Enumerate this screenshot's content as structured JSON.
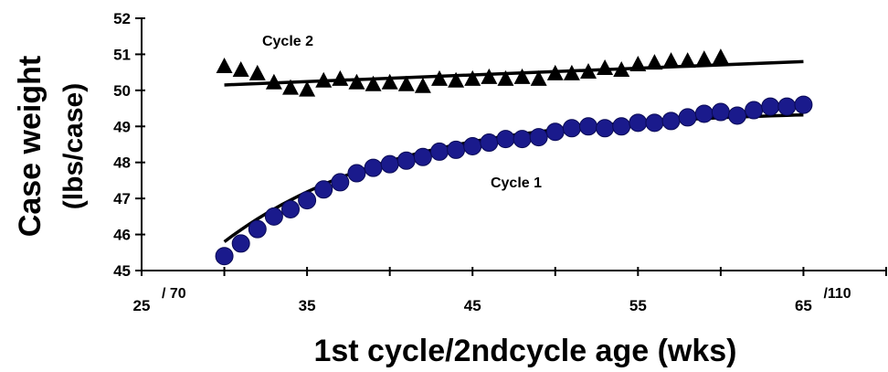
{
  "chart_data": {
    "type": "scatter",
    "xlabel": "1st cycle/2ndcycle age (wks)",
    "ylabel_line1": "Case weight",
    "ylabel_line2": "(lbs/case)",
    "xlim": [
      25,
      70
    ],
    "ylim": [
      45,
      52
    ],
    "x_ticks": [
      25,
      35,
      45,
      55,
      65
    ],
    "y_ticks": [
      45,
      46,
      47,
      48,
      49,
      50,
      51,
      52
    ],
    "x_ticks_secondary": [
      {
        "at": 25,
        "label": "/ 70"
      },
      {
        "at": 65,
        "label": "/110"
      }
    ],
    "annotations": [
      "Cycle 2",
      "Cycle 1"
    ],
    "colors": {
      "cycle1": "#1a1a8c",
      "cycle2": "#000000",
      "trend": "#000000"
    },
    "series": [
      {
        "marker": "circle",
        "annotation": "Cycle 1",
        "x": [
          30,
          31,
          32,
          33,
          34,
          35,
          36,
          37,
          38,
          39,
          40,
          41,
          42,
          43,
          44,
          45,
          46,
          47,
          48,
          49,
          50,
          51,
          52,
          53,
          54,
          55,
          56,
          57,
          58,
          59,
          60,
          61,
          62,
          63,
          64,
          65
        ],
        "y": [
          45.4,
          45.75,
          46.15,
          46.5,
          46.7,
          46.95,
          47.25,
          47.45,
          47.7,
          47.85,
          47.95,
          48.05,
          48.15,
          48.3,
          48.35,
          48.45,
          48.55,
          48.65,
          48.65,
          48.7,
          48.85,
          48.95,
          49.0,
          48.95,
          49.0,
          49.1,
          49.1,
          49.15,
          49.25,
          49.35,
          49.4,
          49.3,
          49.45,
          49.55,
          49.55,
          49.6
        ],
        "trend": {
          "x": [
            30,
            65
          ],
          "y_fn": "logistic"
        }
      },
      {
        "marker": "triangle",
        "annotation": "Cycle 2",
        "x": [
          30,
          31,
          32,
          33,
          34,
          35,
          36,
          37,
          38,
          39,
          40,
          41,
          42,
          43,
          44,
          45,
          46,
          47,
          48,
          49,
          50,
          51,
          52,
          53,
          54,
          55,
          56,
          57,
          58,
          59,
          60
        ],
        "y": [
          50.65,
          50.55,
          50.45,
          50.2,
          50.05,
          50.0,
          50.25,
          50.3,
          50.2,
          50.15,
          50.2,
          50.15,
          50.1,
          50.3,
          50.25,
          50.3,
          50.35,
          50.3,
          50.35,
          50.3,
          50.45,
          50.45,
          50.5,
          50.6,
          50.55,
          50.7,
          50.75,
          50.8,
          50.8,
          50.85,
          50.9
        ],
        "trend": {
          "x": [
            30,
            65
          ],
          "y": [
            50.15,
            50.8
          ]
        }
      }
    ]
  }
}
